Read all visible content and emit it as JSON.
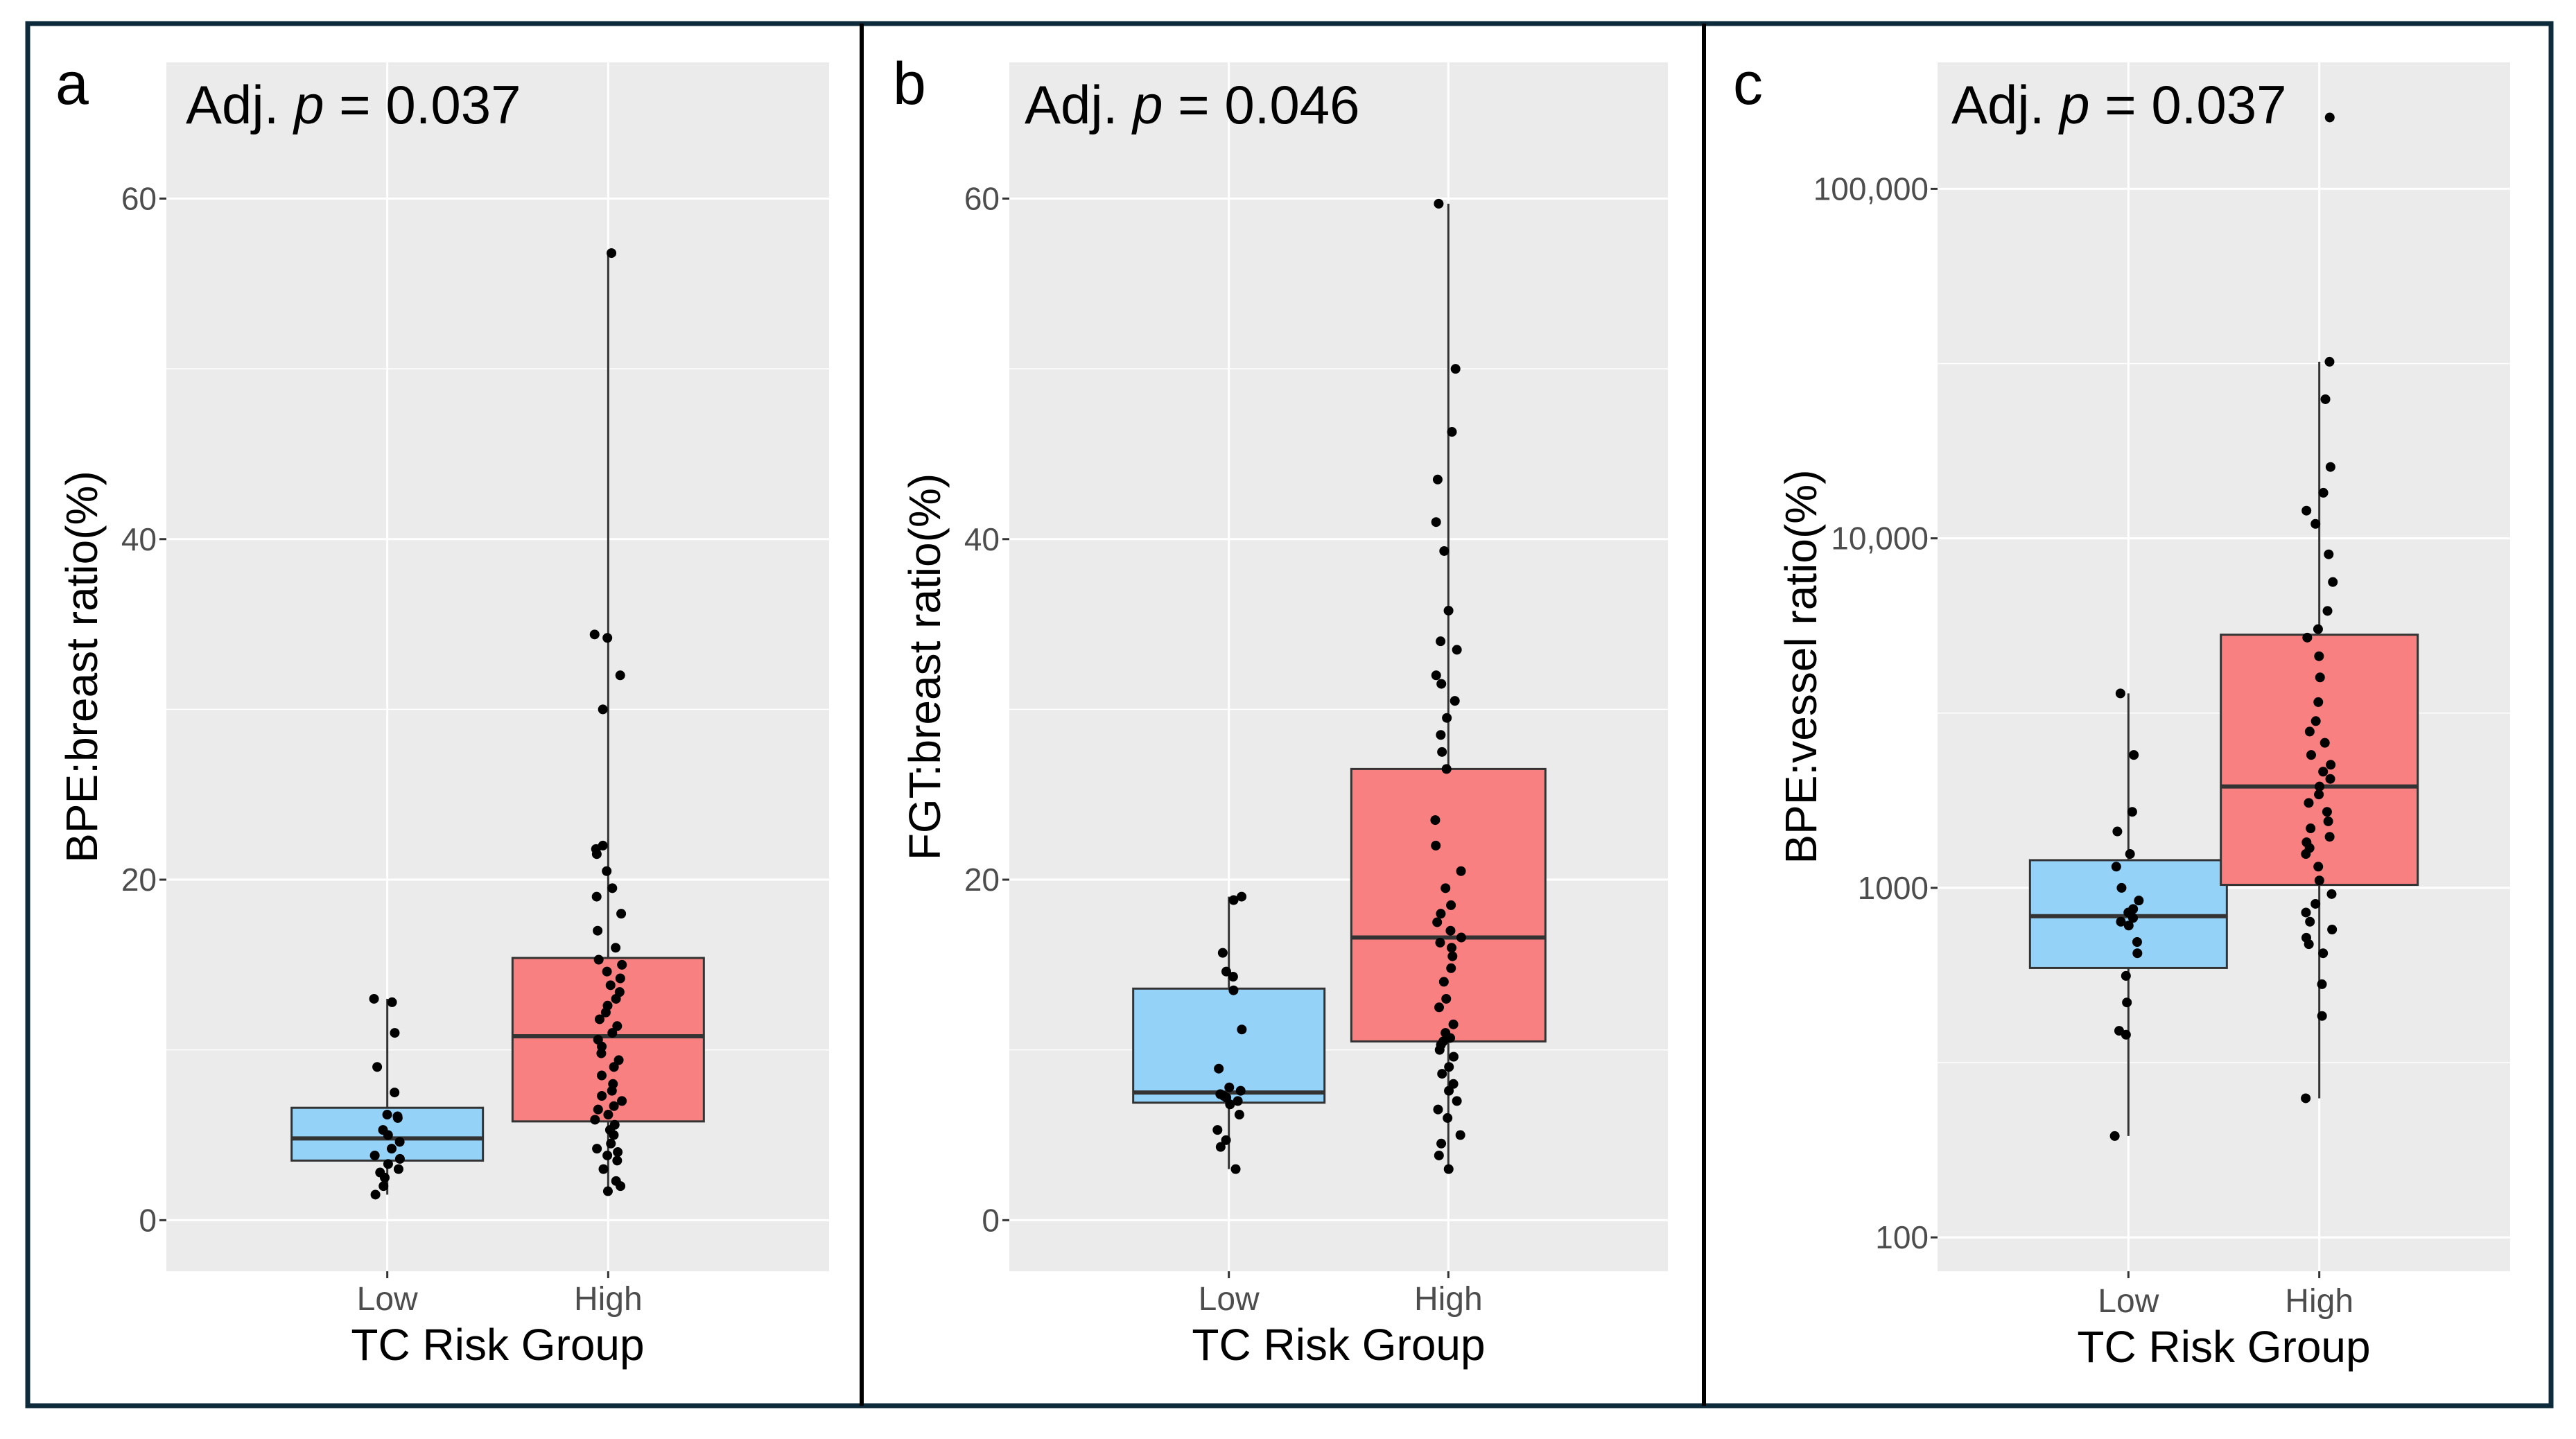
{
  "figure": {
    "border_color": "#0d2b3a"
  },
  "styles": {
    "panel_bg": "#ebebeb",
    "grid": "#ffffff",
    "low_fill": "#94d2f8",
    "high_fill": "#f98080",
    "box_stroke": "#333333",
    "point": "#000000"
  },
  "chart_data": [
    {
      "panel": "a",
      "type": "box",
      "annotation_prefix": "Adj. ",
      "annotation_p": "p",
      "annotation_value": " = 0.037",
      "xlabel": "TC Risk Group",
      "ylabel": "BPE:breast ratio(%)",
      "scale": "linear",
      "ylim": [
        -3,
        68
      ],
      "yticks": [
        0,
        20,
        40,
        60
      ],
      "ytick_labels": [
        "0",
        "20",
        "40",
        "60"
      ],
      "categories": [
        "Low",
        "High"
      ],
      "groups": [
        {
          "name": "Low",
          "q1": 3.5,
          "median": 4.8,
          "q3": 6.6,
          "whisker_low": 1.5,
          "whisker_high": 13.0,
          "points": [
            1.5,
            2.0,
            2.5,
            2.8,
            3.0,
            3.3,
            3.6,
            3.8,
            4.2,
            4.6,
            5.0,
            5.3,
            6.0,
            6.1,
            6.2,
            7.5,
            9.0,
            11.0,
            12.8,
            13.0
          ]
        },
        {
          "name": "High",
          "q1": 5.8,
          "median": 10.8,
          "q3": 15.4,
          "whisker_low": 1.7,
          "whisker_high": 56.8,
          "points": [
            1.7,
            2.0,
            2.3,
            3.0,
            3.5,
            3.8,
            4.0,
            4.2,
            4.5,
            5.0,
            5.3,
            5.6,
            5.9,
            6.2,
            6.5,
            6.7,
            7.0,
            7.3,
            7.6,
            8.0,
            8.5,
            9.0,
            9.4,
            9.8,
            10.2,
            10.6,
            11.0,
            11.4,
            11.8,
            12.2,
            12.6,
            13.0,
            13.4,
            13.8,
            14.2,
            14.6,
            15.0,
            15.3,
            16.0,
            17.0,
            18.0,
            19.0,
            19.5,
            20.5,
            21.5,
            22.0,
            21.8,
            30.0,
            32.0,
            34.2,
            34.4,
            56.8
          ]
        }
      ]
    },
    {
      "panel": "b",
      "type": "box",
      "annotation_prefix": "Adj. ",
      "annotation_p": "p",
      "annotation_value": " = 0.046",
      "xlabel": "TC Risk Group",
      "ylabel": "FGT:breast ratio(%)",
      "scale": "linear",
      "ylim": [
        -3,
        68
      ],
      "yticks": [
        0,
        20,
        40,
        60
      ],
      "ytick_labels": [
        "0",
        "20",
        "40",
        "60"
      ],
      "categories": [
        "Low",
        "High"
      ],
      "groups": [
        {
          "name": "Low",
          "q1": 6.9,
          "median": 7.5,
          "q3": 13.6,
          "whisker_low": 3.0,
          "whisker_high": 19.0,
          "points": [
            3.0,
            4.3,
            4.7,
            5.3,
            6.2,
            6.8,
            7.0,
            7.2,
            7.3,
            7.4,
            7.6,
            7.8,
            8.9,
            11.2,
            13.5,
            14.3,
            14.6,
            15.7,
            18.8,
            19.0
          ]
        },
        {
          "name": "High",
          "q1": 10.5,
          "median": 16.6,
          "q3": 26.5,
          "whisker_low": 3.0,
          "whisker_high": 59.7,
          "points": [
            3.0,
            3.8,
            4.5,
            5.0,
            6.0,
            6.5,
            7.0,
            7.6,
            8.0,
            8.6,
            9.0,
            9.6,
            10.0,
            10.3,
            10.5,
            10.7,
            11.0,
            11.5,
            12.5,
            13.0,
            14.0,
            14.8,
            15.5,
            16.0,
            16.3,
            16.6,
            17.0,
            17.5,
            18.0,
            18.5,
            19.5,
            20.5,
            22.0,
            23.5,
            26.5,
            27.5,
            28.5,
            29.5,
            30.5,
            31.5,
            32.0,
            33.5,
            34.0,
            35.8,
            39.3,
            41.0,
            43.5,
            46.3,
            50.0,
            59.7
          ]
        }
      ]
    },
    {
      "panel": "c",
      "type": "box",
      "annotation_prefix": "Adj. ",
      "annotation_p": "p",
      "annotation_value": " = 0.037",
      "xlabel": "TC Risk Group",
      "ylabel": "BPE:vessel ratio(%)",
      "scale": "log10",
      "ylim": [
        80,
        230000
      ],
      "yticks": [
        100,
        1000,
        10000,
        100000
      ],
      "ytick_labels": [
        "100",
        "1000",
        "10,000",
        "100,000"
      ],
      "categories": [
        "Low",
        "High"
      ],
      "groups": [
        {
          "name": "Low",
          "q1": 590,
          "median": 830,
          "q3": 1200,
          "whisker_low": 195,
          "whisker_high": 3600,
          "points": [
            195,
            380,
            390,
            470,
            560,
            650,
            700,
            780,
            800,
            820,
            850,
            870,
            920,
            1000,
            1150,
            1250,
            1450,
            1650,
            2400,
            3600
          ]
        },
        {
          "name": "High",
          "q1": 1020,
          "median": 1950,
          "q3": 5300,
          "whisker_low": 250,
          "whisker_high": 32000,
          "points": [
            250,
            430,
            530,
            650,
            690,
            720,
            760,
            800,
            850,
            900,
            960,
            1050,
            1150,
            1250,
            1300,
            1350,
            1400,
            1480,
            1550,
            1650,
            1750,
            1850,
            1950,
            2050,
            2150,
            2250,
            2400,
            2600,
            2800,
            3000,
            3400,
            4000,
            4600,
            5200,
            5500,
            6200,
            7500,
            9000,
            11000,
            12000,
            13500,
            16000,
            25000,
            32000,
            160000
          ]
        }
      ]
    }
  ]
}
